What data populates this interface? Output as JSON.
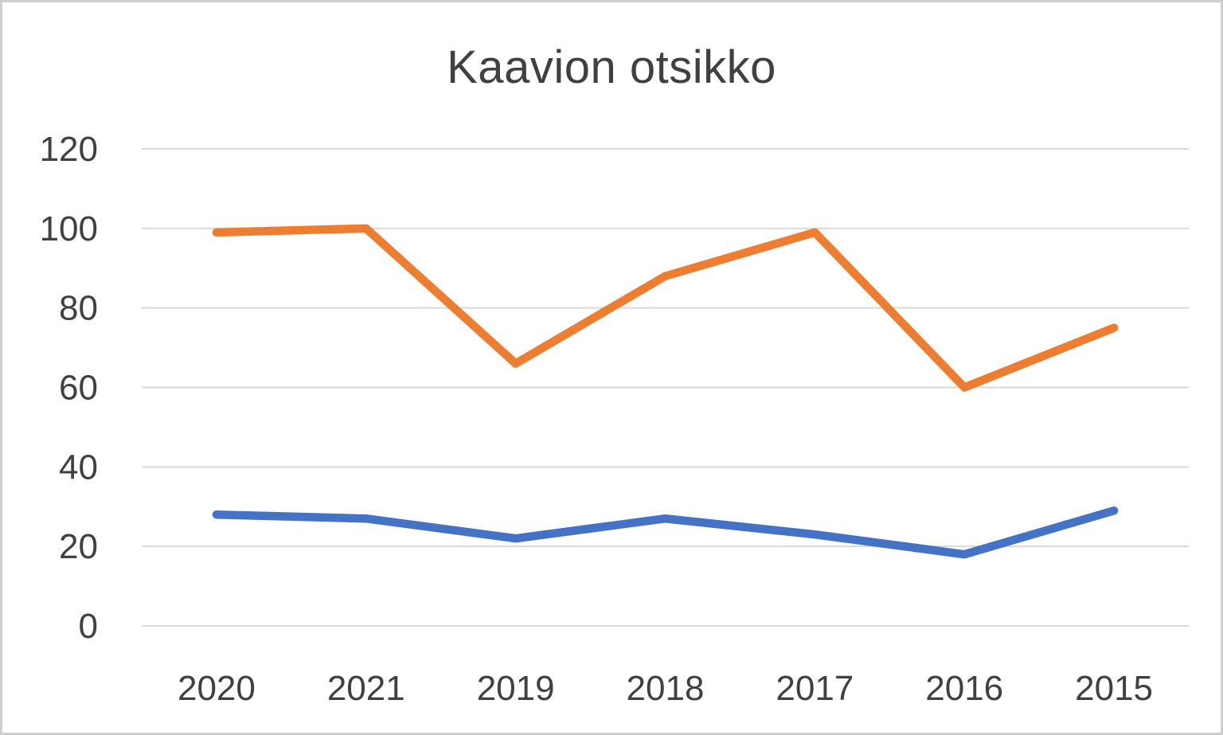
{
  "page": {
    "background": "#ffffff",
    "frame_border_color": "#cfcfcf"
  },
  "chart_data": {
    "type": "line",
    "title": "Kaavion otsikko",
    "categories": [
      "2020",
      "2021",
      "2019",
      "2018",
      "2017",
      "2016",
      "2015"
    ],
    "series": [
      {
        "color": "#4472C4",
        "values": [
          28,
          27,
          22,
          27,
          23,
          18,
          29
        ]
      },
      {
        "color": "#ED7D31",
        "values": [
          99,
          100,
          66,
          88,
          99,
          60,
          75
        ]
      }
    ],
    "ylim": [
      0,
      120
    ],
    "y_ticks": [
      120,
      100,
      80,
      60,
      40,
      20,
      0
    ],
    "grid": true,
    "gridline_color": "#D9D9D9",
    "tick_label_color": "#404040",
    "title_color": "#404040",
    "legend": "none",
    "line_width": 10.5
  }
}
